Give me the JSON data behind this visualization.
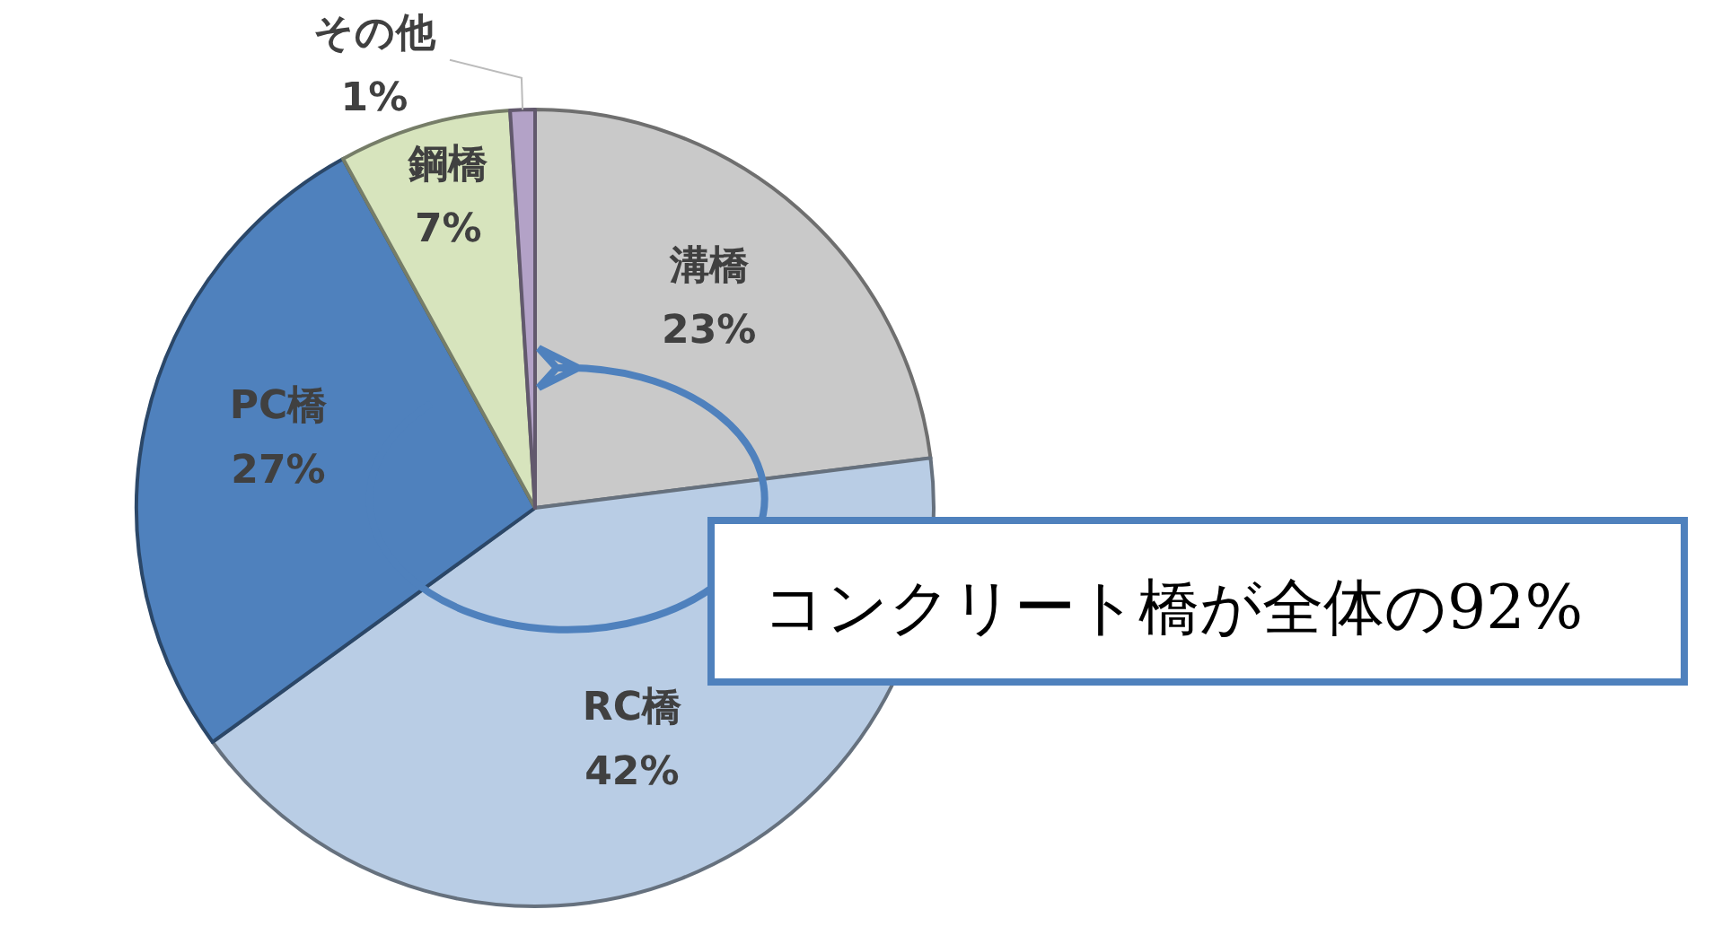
{
  "chart_data": {
    "type": "pie",
    "categories": [
      "溝橋",
      "RC橋",
      "PC橋",
      "鋼橋",
      "その他"
    ],
    "values": [
      23,
      42,
      27,
      7,
      1
    ],
    "colors": [
      "#c9c9c9",
      "#b9cde5",
      "#4f81bd",
      "#d7e4bd",
      "#b3a2c7"
    ],
    "value_labels": [
      "23%",
      "42%",
      "27%",
      "7%",
      "1%"
    ],
    "annotations": [
      "コンクリート橋が全体の92%"
    ]
  }
}
